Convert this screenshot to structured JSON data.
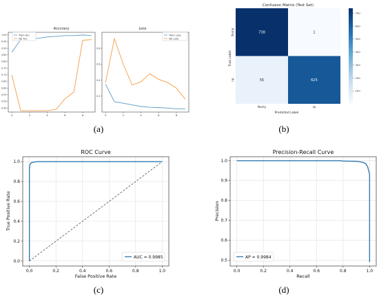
{
  "captions": [
    "(a)",
    "(b)",
    "(c)",
    "(d)"
  ],
  "chart_data": [
    {
      "type": "line",
      "title": "Accuracy",
      "x": [
        0,
        1,
        2,
        3,
        4,
        5,
        6,
        7,
        8,
        9
      ],
      "xticks": [
        0,
        2,
        4,
        6,
        8
      ],
      "yticks": [
        0.45,
        0.5,
        0.55,
        0.6,
        0.65,
        0.7,
        0.75,
        0.8,
        0.85,
        0.9,
        0.95,
        1.0
      ],
      "ytick_labels": [
        "0.45",
        "0.50",
        "0.55",
        "0.60",
        "0.65",
        "0.70",
        "0.75",
        "0.80",
        "0.85",
        "0.90",
        "0.95",
        "1.00"
      ],
      "xlim": [
        -0.4,
        9.4
      ],
      "ylim": [
        0.42,
        1.02
      ],
      "series": [
        {
          "name": "Train Acc",
          "color": "#5a9bc4",
          "values": [
            0.87,
            0.965,
            0.97,
            0.975,
            0.985,
            0.99,
            0.995,
            0.995,
            1.0,
            0.995
          ]
        },
        {
          "name": "Val Acc",
          "color": "#f59a42",
          "values": [
            0.7,
            0.43,
            0.43,
            0.43,
            0.43,
            0.44,
            0.52,
            0.57,
            0.96,
            0.965
          ]
        }
      ],
      "legend": "top-right",
      "grid": false
    },
    {
      "type": "line",
      "title": "Loss",
      "x": [
        0,
        1,
        2,
        3,
        4,
        5,
        6,
        7,
        8,
        9
      ],
      "xticks": [
        0,
        2,
        4,
        6,
        8
      ],
      "yticks": [
        0.2,
        0.4,
        0.6,
        0.8
      ],
      "ytick_labels": [
        "0.2",
        "0.4",
        "0.6",
        "0.8"
      ],
      "xlim": [
        -0.4,
        9.4
      ],
      "ylim": [
        0.0,
        1.0
      ],
      "series": [
        {
          "name": "Train Loss",
          "color": "#5a9bc4",
          "values": [
            0.35,
            0.13,
            0.11,
            0.09,
            0.07,
            0.06,
            0.055,
            0.05,
            0.04,
            0.04
          ]
        },
        {
          "name": "Val Loss",
          "color": "#f59a42",
          "values": [
            0.37,
            0.92,
            0.6,
            0.34,
            0.38,
            0.48,
            0.41,
            0.37,
            0.3,
            0.16
          ]
        }
      ],
      "legend": "top-right",
      "grid": false
    },
    {
      "type": "heatmap",
      "title": "Confusion Matrix (Test Set)",
      "xlabel": "Predicted Label",
      "ylabel": "True Label",
      "x_categories": [
        "Nump",
        "np"
      ],
      "y_categories": [
        "Nump",
        "np"
      ],
      "values": [
        [
          738,
          1
        ],
        [
          55,
          625
        ]
      ],
      "colorbar_ticks": [
        100,
        200,
        300,
        400,
        500,
        600,
        700
      ],
      "colorbar_range": [
        1,
        738
      ],
      "colormap": "Blues"
    },
    {
      "type": "line",
      "title": "ROC Curve",
      "xlabel": "False Positive Rate",
      "ylabel": "True Positive Rate",
      "xlim": [
        -0.05,
        1.05
      ],
      "ylim": [
        -0.05,
        1.05
      ],
      "xticks": [
        0.0,
        0.2,
        0.4,
        0.6,
        0.8,
        1.0
      ],
      "xtick_labels": [
        "0.0",
        "0.2",
        "0.4",
        "0.6",
        "0.8",
        "1.0"
      ],
      "yticks": [
        0.0,
        0.2,
        0.4,
        0.6,
        0.8,
        1.0
      ],
      "ytick_labels": [
        "0.0",
        "0.2",
        "0.4",
        "0.6",
        "0.8",
        "1.0"
      ],
      "series": [
        {
          "name": "AUC = 0.9985",
          "color": "#2f7ab0",
          "x": [
            0,
            0,
            0.003,
            0.008,
            0.015,
            0.03,
            0.06,
            0.1,
            1.0
          ],
          "y": [
            0,
            0.94,
            0.965,
            0.98,
            0.99,
            0.995,
            1.0,
            1.0,
            1.0
          ]
        },
        {
          "color": "#666666",
          "dashed": true,
          "x": [
            0,
            1
          ],
          "y": [
            0,
            1
          ]
        }
      ],
      "legend": "lower-right",
      "grid": true
    },
    {
      "type": "line",
      "title": "Precision-Recall Curve",
      "xlabel": "Recall",
      "ylabel": "Precision",
      "xlim": [
        -0.05,
        1.05
      ],
      "ylim": [
        0.47,
        1.02
      ],
      "xticks": [
        0.0,
        0.2,
        0.4,
        0.6,
        0.8,
        1.0
      ],
      "xtick_labels": [
        "0.0",
        "0.2",
        "0.4",
        "0.6",
        "0.8",
        "1.0"
      ],
      "yticks": [
        0.5,
        0.6,
        0.7,
        0.8,
        0.9,
        1.0
      ],
      "ytick_labels": [
        "0.5",
        "0.6",
        "0.7",
        "0.8",
        "0.9",
        "1.0"
      ],
      "series": [
        {
          "name": "AP = 0.9984",
          "color": "#2f7ab0",
          "x": [
            0,
            0.5,
            0.78,
            0.8,
            0.9,
            0.95,
            0.97,
            0.985,
            0.993,
            1.0,
            1.0
          ],
          "y": [
            1.0,
            1.0,
            1.0,
            0.998,
            0.997,
            0.992,
            0.985,
            0.97,
            0.95,
            0.93,
            0.49
          ]
        }
      ],
      "legend": "lower-left",
      "grid": true
    }
  ]
}
